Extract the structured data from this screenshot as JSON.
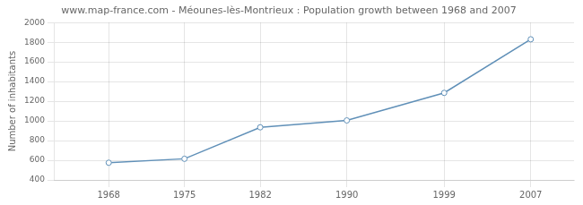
{
  "chart_data": {
    "type": "line",
    "title": "www.map-france.com - Méounes-lès-Montrieux : Population growth between 1968 and 2007",
    "ylabel": "Number of inhabitants",
    "x": [
      1968,
      1975,
      1982,
      1990,
      1999,
      2007
    ],
    "values": [
      575,
      615,
      935,
      1005,
      1285,
      1830
    ],
    "color": "#6090b8",
    "marker": "circle",
    "xlim": [
      1963,
      2011
    ],
    "ylim": [
      400,
      2000
    ],
    "xticks": [
      1968,
      1975,
      1982,
      1990,
      1999,
      2007
    ],
    "yticks": [
      400,
      600,
      800,
      1000,
      1200,
      1400,
      1600,
      1800,
      2000
    ],
    "grid": true
  }
}
